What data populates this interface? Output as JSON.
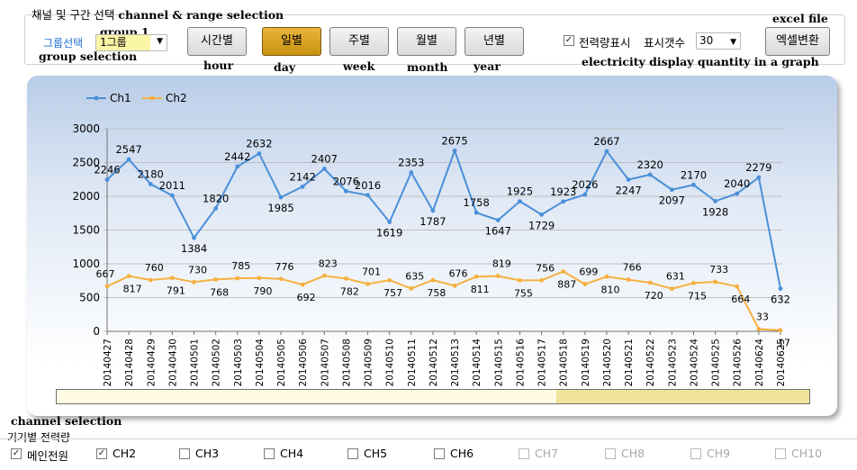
{
  "annotations": {
    "section": "channel & range selection",
    "group": "group 1",
    "group_selection": "group selection",
    "hour": "hour",
    "day": "day",
    "week": "week",
    "month": "month",
    "year": "year",
    "excel": "excel file",
    "elec_qty": "electricity display quantity in a graph",
    "channel_selection": "channel selection"
  },
  "top": {
    "section_title": "채널 및 구간 선택",
    "group_label": "그룹선택",
    "group_value": "1그룹",
    "period_buttons": [
      {
        "label": "시간별",
        "active": false
      },
      {
        "label": "일별",
        "active": true
      },
      {
        "label": "주별",
        "active": false
      },
      {
        "label": "월별",
        "active": false
      },
      {
        "label": "년별",
        "active": false
      }
    ],
    "power_display_label": "전력량표시",
    "power_display_checked": true,
    "count_label": "표시갯수",
    "count_value": "30",
    "excel_button": "엑셀변환"
  },
  "chart_data": {
    "type": "line",
    "title": "",
    "xlabel": "",
    "ylabel": "",
    "ylim": [
      0,
      3000
    ],
    "yticks": [
      0,
      500,
      1000,
      1500,
      2000,
      2500,
      3000
    ],
    "grid": true,
    "legend_position": "top-left",
    "x": [
      "20140427",
      "20140428",
      "20140429",
      "20140430",
      "20140501",
      "20140502",
      "20140503",
      "20140504",
      "20140505",
      "20140506",
      "20140507",
      "20140508",
      "20140509",
      "20140510",
      "20140511",
      "20140512",
      "20140513",
      "20140514",
      "20140515",
      "20140516",
      "20140517",
      "20140518",
      "20140519",
      "20140520",
      "20140521",
      "20140522",
      "20140523",
      "20140524",
      "20140525",
      "20140526",
      "20140624",
      "20140625"
    ],
    "series": [
      {
        "name": "Ch1",
        "color": "#4a8fd8",
        "values": [
          2246,
          2547,
          2180,
          2011,
          1384,
          1820,
          2442,
          2632,
          1985,
          2142,
          2407,
          2076,
          2016,
          1619,
          2353,
          1787,
          2675,
          1758,
          1647,
          1925,
          1729,
          1923,
          2026,
          2667,
          2247,
          2320,
          2097,
          2170,
          1928,
          2040,
          2279,
          632
        ]
      },
      {
        "name": "Ch2",
        "color": "#f5b040",
        "values": [
          667,
          817,
          760,
          791,
          730,
          768,
          785,
          790,
          776,
          692,
          823,
          782,
          701,
          757,
          635,
          758,
          676,
          811,
          819,
          755,
          756,
          887,
          699,
          810,
          766,
          720,
          631,
          715,
          733,
          664,
          33,
          17
        ]
      }
    ]
  },
  "bottom": {
    "section_label": "기기별 전력량",
    "channels": [
      {
        "label": "메인전원",
        "checked": true,
        "enabled": true
      },
      {
        "label": "CH2",
        "checked": true,
        "enabled": true
      },
      {
        "label": "CH3",
        "checked": false,
        "enabled": true
      },
      {
        "label": "CH4",
        "checked": false,
        "enabled": true
      },
      {
        "label": "CH5",
        "checked": false,
        "enabled": true
      },
      {
        "label": "CH6",
        "checked": false,
        "enabled": true
      },
      {
        "label": "CH7",
        "checked": false,
        "enabled": false
      },
      {
        "label": "CH8",
        "checked": false,
        "enabled": false
      },
      {
        "label": "CH9",
        "checked": false,
        "enabled": false
      },
      {
        "label": "CH10",
        "checked": false,
        "enabled": false
      }
    ]
  }
}
